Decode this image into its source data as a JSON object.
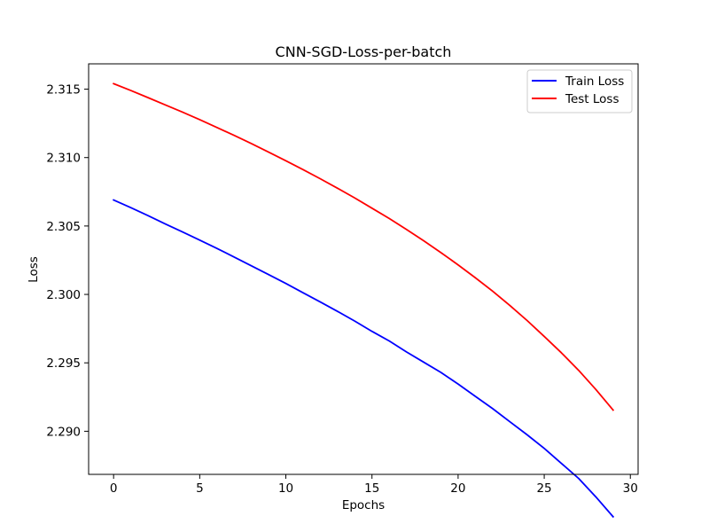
{
  "chart_data": {
    "type": "line",
    "title": "CNN-SGD-Loss-per-batch",
    "xlabel": "Epochs",
    "ylabel": "Loss",
    "xlim": [
      -1.45,
      30.45
    ],
    "ylim": [
      2.28685,
      2.31685
    ],
    "xticks": [
      0,
      5,
      10,
      15,
      20,
      25,
      30
    ],
    "xtick_labels": [
      "0",
      "5",
      "10",
      "15",
      "20",
      "25",
      "30"
    ],
    "yticks": [
      2.29,
      2.295,
      2.3,
      2.305,
      2.31,
      2.315
    ],
    "ytick_labels": [
      "2.290",
      "2.295",
      "2.300",
      "2.305",
      "2.310",
      "2.315"
    ],
    "grid": false,
    "legend_position": "top-right",
    "x": [
      0,
      1,
      2,
      3,
      4,
      5,
      6,
      7,
      8,
      9,
      10,
      11,
      12,
      13,
      14,
      15,
      16,
      17,
      18,
      19,
      20,
      21,
      22,
      23,
      24,
      25,
      26,
      27,
      28,
      29
    ],
    "series": [
      {
        "name": "Train Loss",
        "color": "#0000ff",
        "values": [
          2.3069,
          2.30634,
          2.30576,
          2.30515,
          2.30457,
          2.30397,
          2.30336,
          2.30273,
          2.30209,
          2.30145,
          2.3008,
          2.30012,
          2.29945,
          2.29876,
          2.29805,
          2.2973,
          2.2966,
          2.2958,
          2.29505,
          2.2943,
          2.29345,
          2.29255,
          2.29166,
          2.2907,
          2.28975,
          2.28875,
          2.28765,
          2.28655,
          2.2852,
          2.28375
        ]
      },
      {
        "name": "Test Loss",
        "color": "#ff0000",
        "values": [
          2.3154,
          2.3149,
          2.31438,
          2.31385,
          2.31332,
          2.31277,
          2.3122,
          2.31162,
          2.31102,
          2.3104,
          2.30977,
          2.30912,
          2.30845,
          2.30776,
          2.30705,
          2.3063,
          2.30555,
          2.30475,
          2.30392,
          2.30306,
          2.30216,
          2.30122,
          2.30024,
          2.2992,
          2.2981,
          2.29693,
          2.29573,
          2.29445,
          2.29305,
          2.29155
        ]
      }
    ]
  }
}
